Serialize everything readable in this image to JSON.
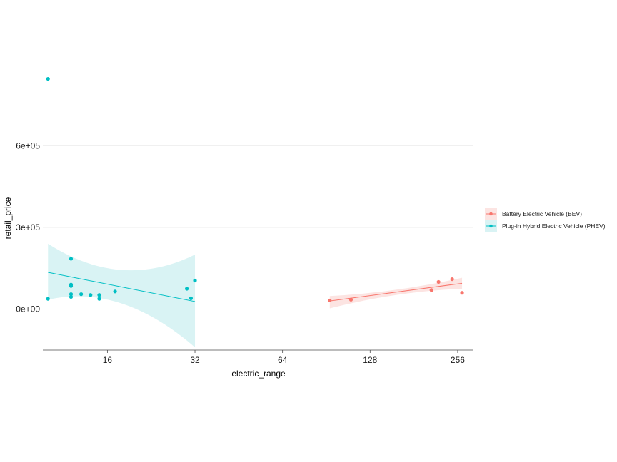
{
  "chart_data": {
    "type": "scatter",
    "xlabel": "electric_range",
    "ylabel": "retail_price",
    "x_scale": "log2",
    "xlim": [
      9.6,
      290
    ],
    "ylim": [
      -150000,
      925000
    ],
    "x_ticks": [
      16,
      32,
      64,
      128,
      256
    ],
    "x_tick_labels": [
      "16",
      "32",
      "64",
      "128",
      "256"
    ],
    "y_ticks": [
      0,
      300000,
      600000
    ],
    "y_tick_labels": [
      "0e+00",
      "3e+05",
      "6e+05"
    ],
    "grid": "horizontal major only",
    "legend_position": "right",
    "series": [
      {
        "name": "Battery Electric Vehicle (BEV)",
        "color": "#F8766D",
        "fill": "#FBD8D5",
        "points": [
          [
            93,
            32000
          ],
          [
            110,
            35000
          ],
          [
            208,
            70000
          ],
          [
            220,
            100000
          ],
          [
            245,
            110000
          ],
          [
            265,
            60000
          ]
        ],
        "fit": {
          "x0": 93,
          "x1": 265,
          "y0": 30000,
          "y1": 95000
        },
        "band": {
          "upper0": 48000,
          "lower0": 3000,
          "upper1": 115000,
          "lower1": 75000
        }
      },
      {
        "name": "Plug-in Hybrid Electric Vehicle (PHEV)",
        "color": "#00BFC4",
        "fill": "#C9EEEF",
        "points": [
          [
            10,
            845000
          ],
          [
            10,
            38000
          ],
          [
            12,
            185000
          ],
          [
            12,
            90000
          ],
          [
            12,
            85000
          ],
          [
            12,
            55000
          ],
          [
            12,
            45000
          ],
          [
            13,
            55000
          ],
          [
            14,
            52000
          ],
          [
            15,
            52000
          ],
          [
            15,
            38000
          ],
          [
            17,
            65000
          ],
          [
            30,
            75000
          ],
          [
            31,
            40000
          ],
          [
            32,
            105000
          ]
        ],
        "fit": {
          "x0": 10,
          "x1": 32,
          "y0": 135000,
          "y1": 28000
        },
        "band": {
          "upper0": 240000,
          "lower0": 35000,
          "upper1": 200000,
          "lower1": -140000
        }
      }
    ]
  }
}
